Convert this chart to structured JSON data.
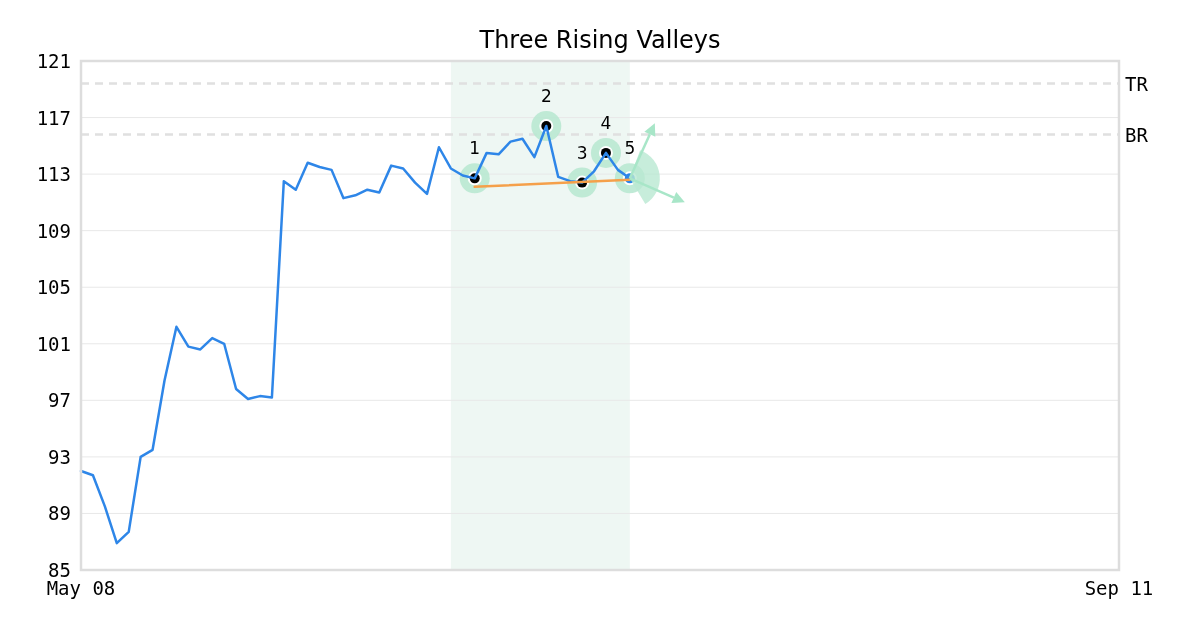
{
  "chart_data": {
    "type": "line",
    "title": "Three Rising Valleys",
    "categories": [
      "May 08",
      null,
      null,
      null,
      null,
      null,
      null,
      null,
      null,
      null,
      null,
      null,
      null,
      null,
      null,
      null,
      null,
      null,
      null,
      null,
      null,
      null,
      null,
      null,
      null,
      null,
      null,
      null,
      null,
      null,
      null,
      null,
      null,
      null,
      null,
      null,
      null,
      null,
      null,
      null,
      null,
      null,
      null,
      null,
      null,
      null,
      null,
      null,
      null,
      null,
      null,
      null,
      null,
      null,
      null,
      null,
      null,
      null,
      null,
      null,
      null,
      null,
      null,
      null,
      null,
      null,
      null,
      null,
      null,
      null,
      null,
      null,
      null,
      null,
      null,
      null,
      null,
      null,
      null,
      null,
      null,
      null,
      null,
      null,
      null,
      null,
      null,
      "Sep 11"
    ],
    "ylim": [
      85,
      121
    ],
    "yticks": [
      85,
      89,
      93,
      97,
      101,
      105,
      109,
      113,
      117,
      121
    ],
    "grid": "y",
    "series": [
      {
        "color": "#2e86e8",
        "values": [
          92.0,
          91.7,
          89.5,
          86.9,
          87.7,
          93.0,
          93.5,
          98.4,
          102.2,
          100.8,
          100.6,
          101.4,
          101.0,
          97.8,
          97.1,
          97.3,
          97.2,
          112.5,
          111.9,
          113.8,
          113.5,
          113.3,
          111.3,
          111.5,
          111.9,
          111.7,
          113.6,
          113.4,
          112.4,
          111.6,
          114.9,
          113.4,
          112.9,
          112.7,
          114.5,
          114.4,
          115.3,
          115.5,
          114.2,
          116.4,
          112.8,
          112.5,
          112.4,
          113.2,
          114.5,
          113.3,
          112.7,
          null,
          null,
          null,
          null,
          null,
          null,
          null,
          null,
          null,
          null,
          null,
          null,
          null,
          null,
          null,
          null,
          null,
          null,
          null,
          null,
          null,
          null,
          null,
          null,
          null,
          null,
          null,
          null,
          null,
          null,
          null,
          null,
          null,
          null,
          null,
          null,
          null,
          null,
          null,
          null,
          null
        ]
      },
      {
        "color": "#f5a04a",
        "values": [
          null,
          null,
          null,
          null,
          null,
          null,
          null,
          null,
          null,
          null,
          null,
          null,
          null,
          null,
          null,
          null,
          null,
          null,
          null,
          null,
          null,
          null,
          null,
          null,
          null,
          null,
          null,
          null,
          null,
          null,
          null,
          null,
          null,
          112.1,
          null,
          null,
          null,
          null,
          null,
          null,
          null,
          null,
          null,
          null,
          null,
          null,
          112.6,
          null,
          null,
          null,
          null,
          null,
          null,
          null,
          null,
          null,
          null,
          null,
          null,
          null,
          null,
          null,
          null,
          null,
          null,
          null,
          null,
          null,
          null,
          null,
          null,
          null,
          null,
          null,
          null,
          null,
          null,
          null,
          null,
          null,
          null,
          null,
          null,
          null,
          null,
          null,
          null,
          null
        ]
      },
      {
        "type": "scatter",
        "marker": "circle",
        "values": [
          null,
          null,
          null,
          null,
          null,
          null,
          null,
          null,
          null,
          null,
          null,
          null,
          null,
          null,
          null,
          null,
          null,
          null,
          null,
          null,
          null,
          null,
          null,
          null,
          null,
          null,
          null,
          null,
          null,
          null,
          null,
          null,
          null,
          112.7,
          null,
          null,
          null,
          null,
          null,
          116.4,
          null,
          null,
          112.4,
          null,
          114.5,
          null,
          112.7,
          null,
          null,
          null,
          null,
          null,
          null,
          null,
          null,
          null,
          null,
          null,
          null,
          null,
          null,
          null,
          null,
          null,
          null,
          null,
          null,
          null,
          null,
          null,
          null,
          null,
          null,
          null,
          null,
          null,
          null,
          null,
          null,
          null,
          null,
          null,
          null,
          null,
          null,
          null,
          null,
          null
        ],
        "colors": [
          null,
          null,
          null,
          null,
          null,
          null,
          null,
          null,
          null,
          null,
          null,
          null,
          null,
          null,
          null,
          null,
          null,
          null,
          null,
          null,
          null,
          null,
          null,
          null,
          null,
          null,
          null,
          null,
          null,
          null,
          null,
          null,
          null,
          "#000000",
          null,
          null,
          null,
          null,
          null,
          "#000000",
          null,
          null,
          "#000000",
          null,
          "#000000",
          null,
          "#2a85e8",
          null,
          null,
          null,
          null,
          null,
          null,
          null,
          null,
          null,
          null,
          null,
          null,
          null,
          null,
          null,
          null,
          null,
          null,
          null,
          null,
          null,
          null,
          null,
          null,
          null,
          null,
          null,
          null,
          null,
          null,
          null,
          null,
          null,
          null,
          null,
          null,
          null,
          null,
          null,
          null,
          null
        ]
      }
    ],
    "ref_lines": [
      {
        "axis": "y",
        "value": 119.4,
        "label": "TR",
        "color": "#e0e0e0",
        "line_style": "dashed"
      },
      {
        "axis": "y",
        "value": 115.8,
        "label": "BR",
        "color": "#e0e0e0",
        "line_style": "dashed"
      }
    ],
    "annotations": [
      {
        "text": "1",
        "y": 112.7
      },
      {
        "text": "2",
        "y": 116.4
      },
      {
        "text": "3",
        "y": 112.4
      },
      {
        "text": "4",
        "y": 114.5
      },
      {
        "text": "5",
        "y": 112.7
      }
    ]
  }
}
